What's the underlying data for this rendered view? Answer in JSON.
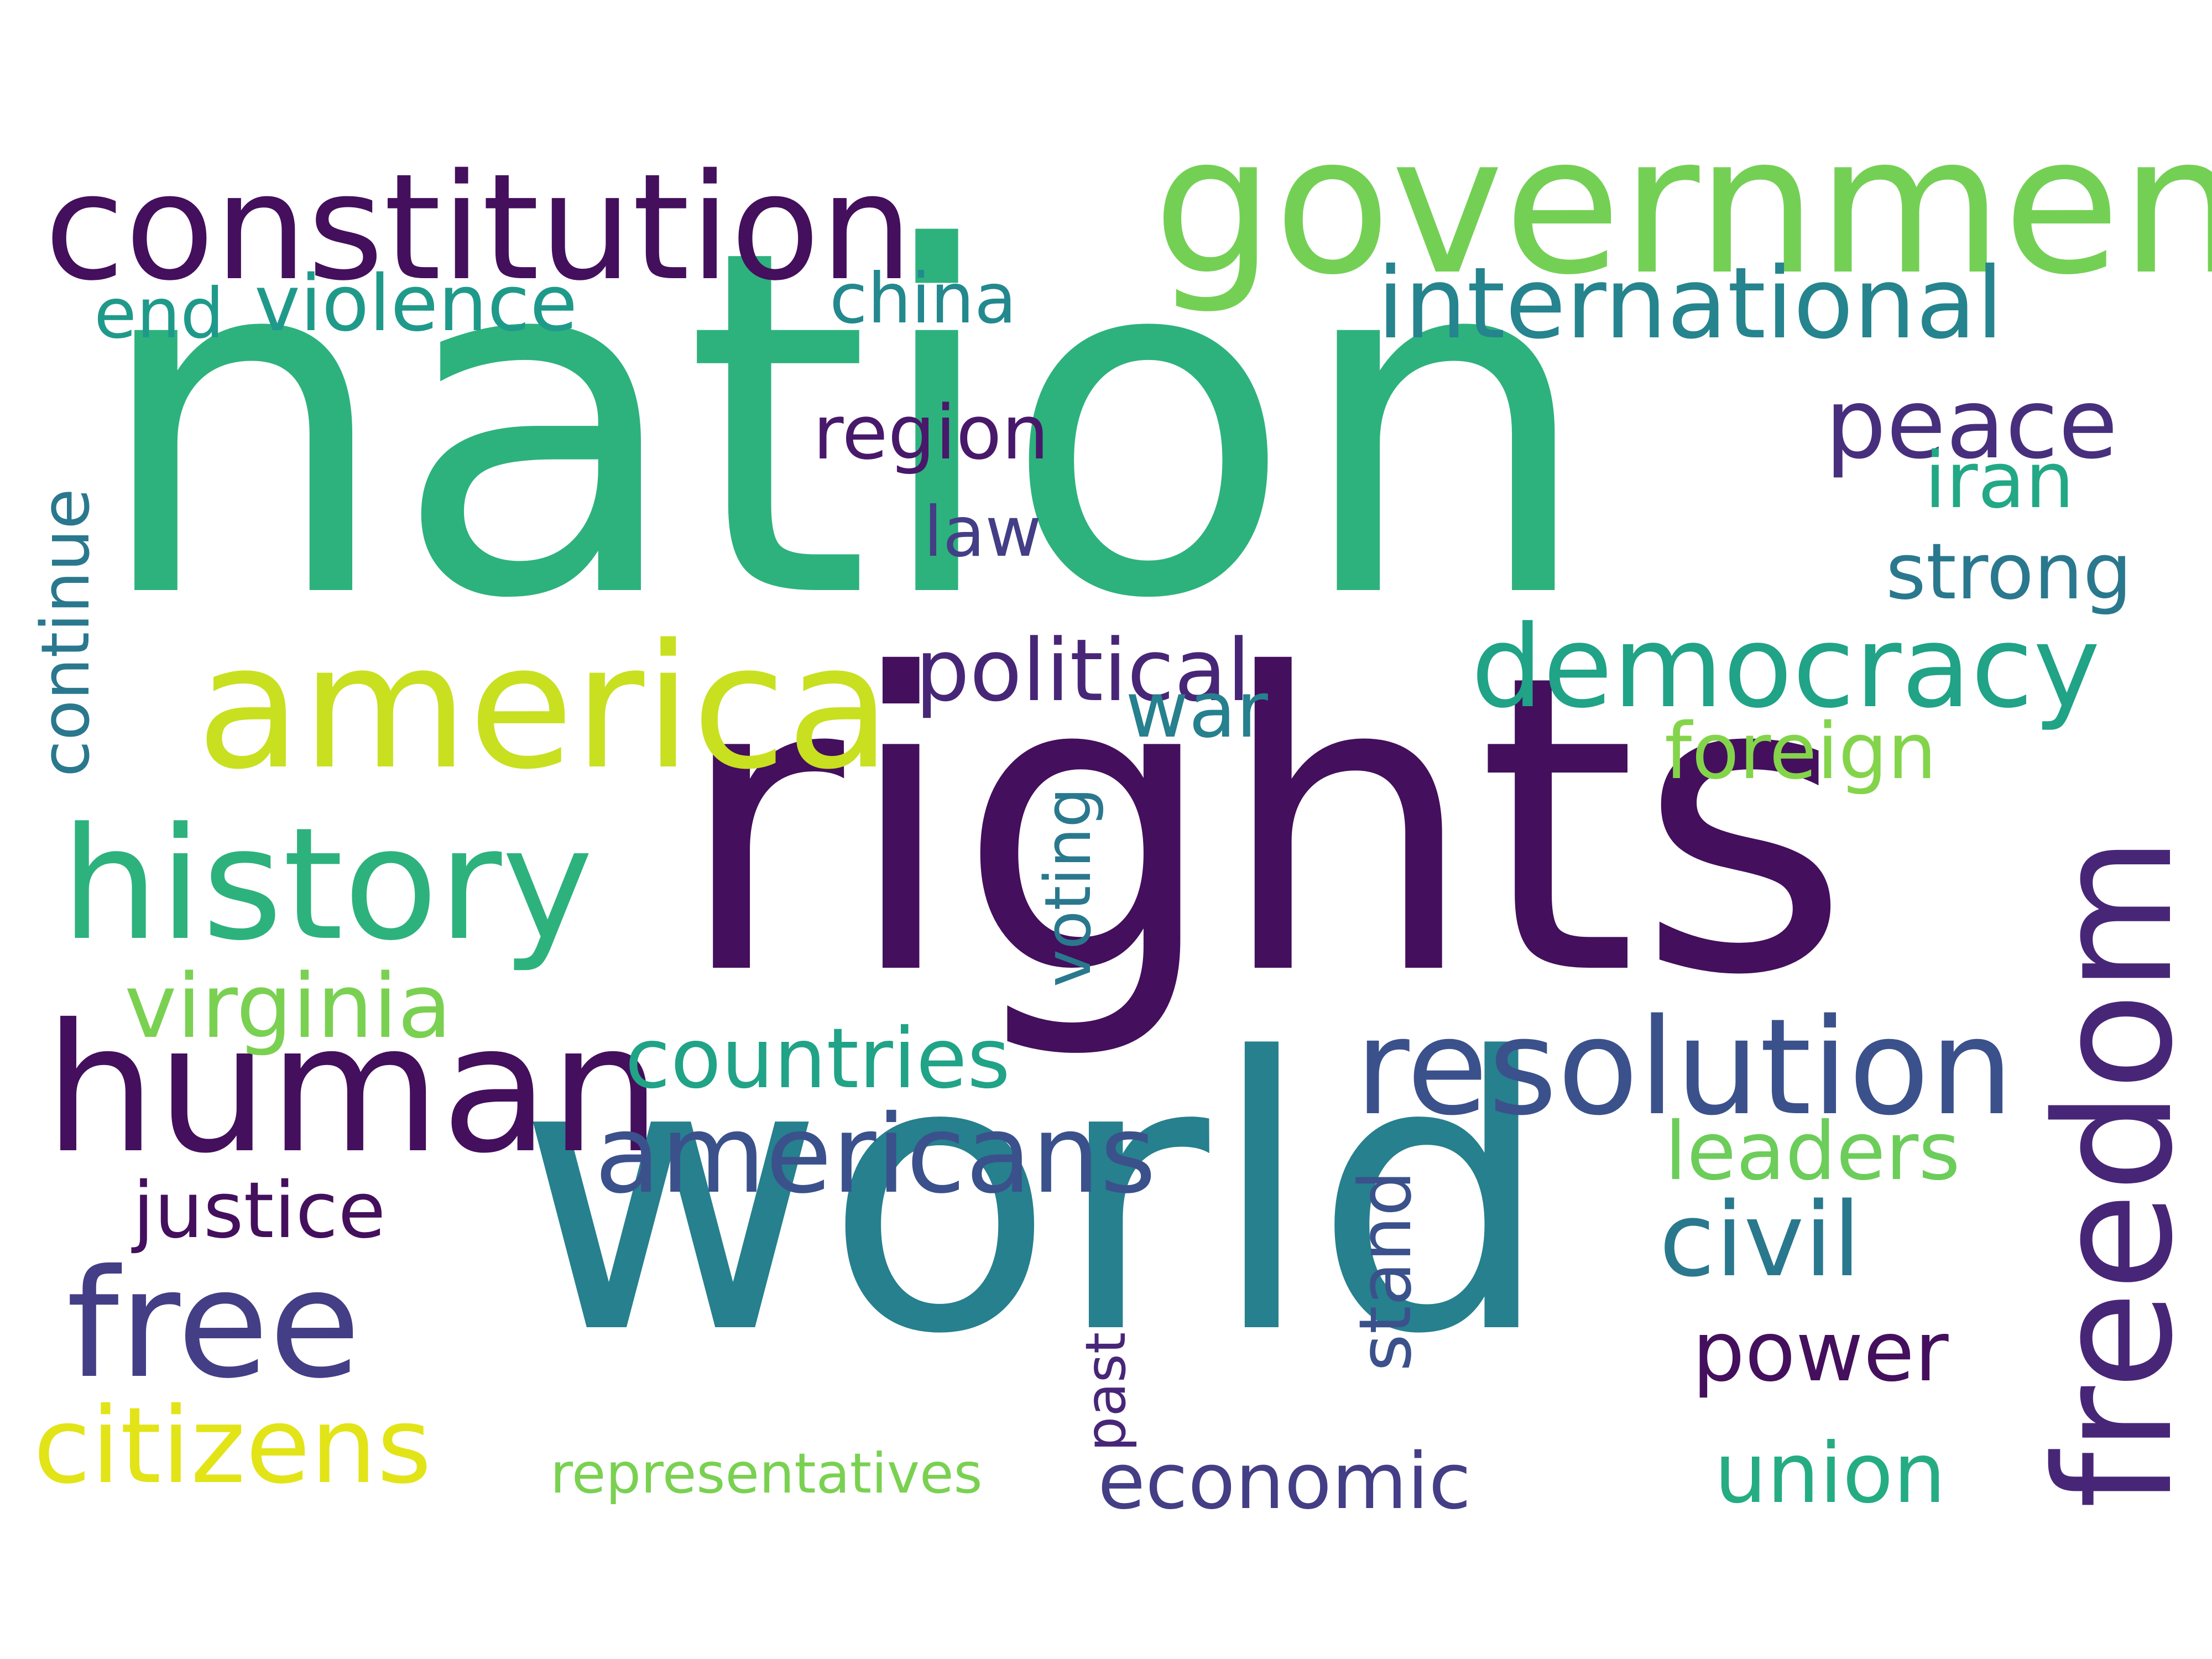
{
  "words": [
    {
      "key": "nation",
      "text": "nation",
      "color": "#2db27d"
    },
    {
      "key": "rights",
      "text": "rights",
      "color": "#440f5c"
    },
    {
      "key": "world",
      "text": "world",
      "color": "#26808e"
    },
    {
      "key": "government",
      "text": "government",
      "color": "#74d055"
    },
    {
      "key": "constitution",
      "text": "constitution",
      "color": "#440f5c"
    },
    {
      "key": "america",
      "text": "america",
      "color": "#c8e020"
    },
    {
      "key": "history",
      "text": "history",
      "color": "#2db27d"
    },
    {
      "key": "human",
      "text": "human",
      "color": "#440f5c"
    },
    {
      "key": "freedom",
      "text": "freedom",
      "color": "#482677"
    },
    {
      "key": "free",
      "text": "free",
      "color": "#433e85"
    },
    {
      "key": "resolution",
      "text": "resolution",
      "color": "#3b518b"
    },
    {
      "key": "democracy",
      "text": "democracy",
      "color": "#20a386"
    },
    {
      "key": "americans",
      "text": "americans",
      "color": "#3b518b"
    },
    {
      "key": "international",
      "text": "international",
      "color": "#25848e"
    },
    {
      "key": "civil",
      "text": "civil",
      "color": "#2a788e"
    },
    {
      "key": "citizens",
      "text": "citizens",
      "color": "#e2e418"
    },
    {
      "key": "peace",
      "text": "peace",
      "color": "#472f7d"
    },
    {
      "key": "violence",
      "text": "violence",
      "color": "#1f9a8a"
    },
    {
      "key": "end",
      "text": "end",
      "color": "#1f9a8a"
    },
    {
      "key": "china",
      "text": "china",
      "color": "#23898e"
    },
    {
      "key": "region",
      "text": "region",
      "color": "#48186a"
    },
    {
      "key": "law",
      "text": "law",
      "color": "#433e85"
    },
    {
      "key": "iran",
      "text": "iran",
      "color": "#22a884"
    },
    {
      "key": "strong",
      "text": "strong",
      "color": "#2a788e"
    },
    {
      "key": "political",
      "text": "political",
      "color": "#482677"
    },
    {
      "key": "war",
      "text": "war",
      "color": "#26808e"
    },
    {
      "key": "foreign",
      "text": "foreign",
      "color": "#84d44b"
    },
    {
      "key": "virginia",
      "text": "virginia",
      "color": "#7ad151"
    },
    {
      "key": "countries",
      "text": "countries",
      "color": "#20a386"
    },
    {
      "key": "justice",
      "text": "justice",
      "color": "#440f5c"
    },
    {
      "key": "leaders",
      "text": "leaders",
      "color": "#6ccd5a"
    },
    {
      "key": "power",
      "text": "power",
      "color": "#440f5c"
    },
    {
      "key": "union",
      "text": "union",
      "color": "#25ac82"
    },
    {
      "key": "economic",
      "text": "economic",
      "color": "#433e85"
    },
    {
      "key": "representatives",
      "text": "representatives",
      "color": "#7ad151"
    },
    {
      "key": "continue",
      "text": "continue",
      "color": "#2a788e"
    },
    {
      "key": "voting",
      "text": "voting",
      "color": "#2a788e"
    },
    {
      "key": "stand",
      "text": "stand",
      "color": "#3b518b"
    },
    {
      "key": "past",
      "text": "past",
      "color": "#482677"
    }
  ]
}
